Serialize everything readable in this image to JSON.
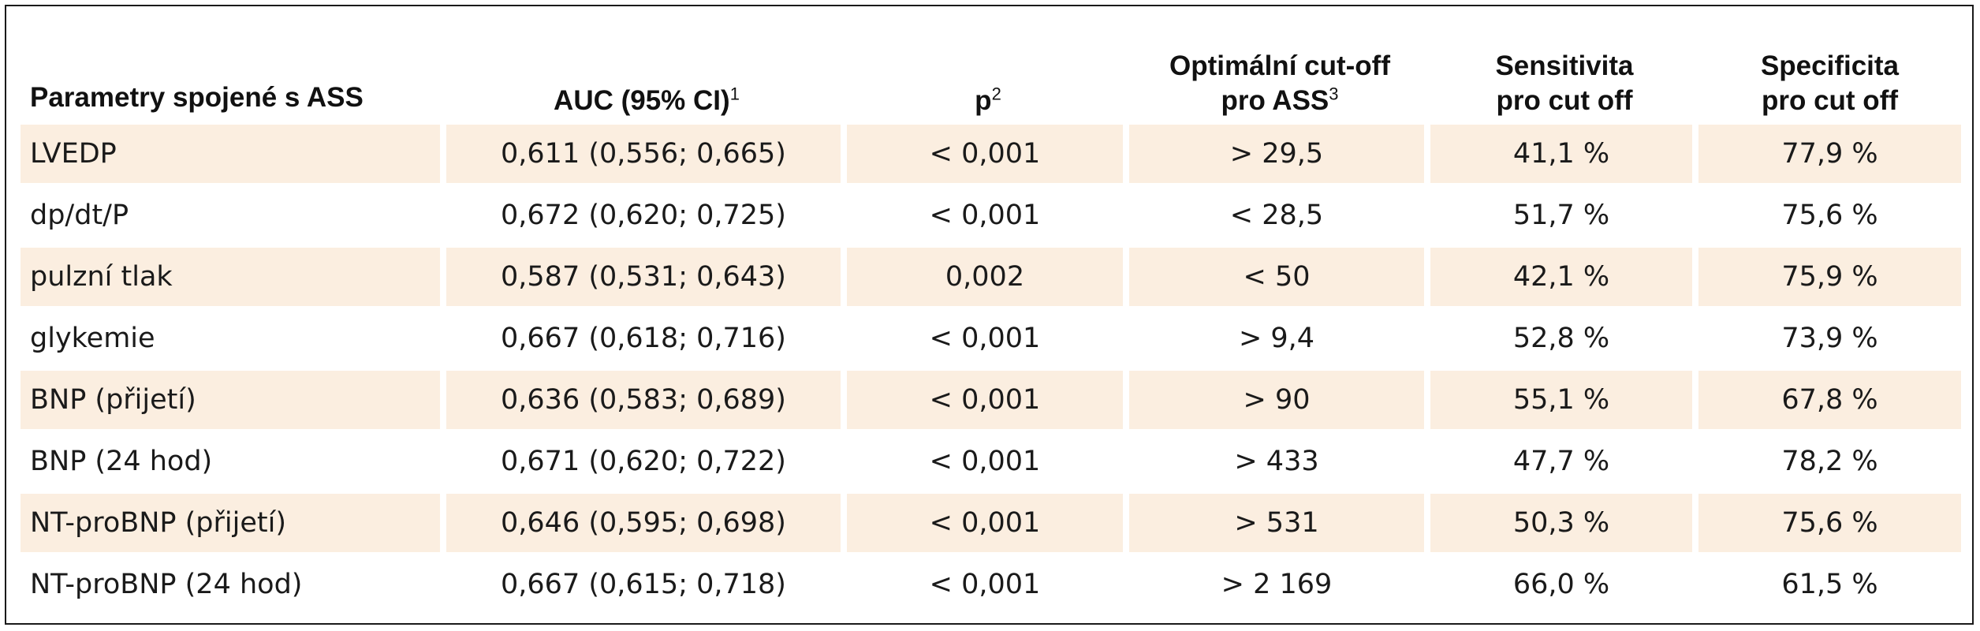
{
  "table": {
    "headers": [
      {
        "line1": "Parametry spojené s ASS",
        "line2": "",
        "sup": ""
      },
      {
        "line1": "AUC (95% CI)",
        "line2": "",
        "sup": "1"
      },
      {
        "line1": "p",
        "line2": "",
        "sup": "2"
      },
      {
        "line1": "Optimální cut-off",
        "line2": "pro ASS",
        "sup": "3"
      },
      {
        "line1": "Sensitivita",
        "line2": "pro cut off",
        "sup": ""
      },
      {
        "line1": "Specificita",
        "line2": "pro cut off",
        "sup": ""
      }
    ],
    "rows": [
      [
        "LVEDP",
        "0,611 (0,556; 0,665)",
        "< 0,001",
        "> 29,5",
        "41,1 %",
        "77,9 %"
      ],
      [
        "dp/dt/P",
        "0,672 (0,620; 0,725)",
        "< 0,001",
        "< 28,5",
        "51,7 %",
        "75,6 %"
      ],
      [
        "pulzní tlak",
        "0,587 (0,531; 0,643)",
        "0,002",
        "< 50",
        "42,1 %",
        "75,9 %"
      ],
      [
        "glykemie",
        "0,667 (0,618; 0,716)",
        "< 0,001",
        "> 9,4",
        "52,8 %",
        "73,9 %"
      ],
      [
        "BNP (přijetí)",
        "0,636 (0,583; 0,689)",
        "< 0,001",
        "> 90",
        "55,1 %",
        "67,8 %"
      ],
      [
        "BNP (24 hod)",
        "0,671 (0,620; 0,722)",
        "< 0,001",
        "> 433",
        "47,7 %",
        "78,2 %"
      ],
      [
        "NT-proBNP (přijetí)",
        "0,646 (0,595; 0,698)",
        "< 0,001",
        "> 531",
        "50,3 %",
        "75,6 %"
      ],
      [
        "NT-proBNP (24 hod)",
        "0,667 (0,615; 0,718)",
        "< 0,001",
        "> 2 169",
        "66,0 %",
        "61,5 %"
      ]
    ]
  },
  "style": {
    "shade_color": "#fbeee0",
    "border_color": "#1a1a1a"
  }
}
